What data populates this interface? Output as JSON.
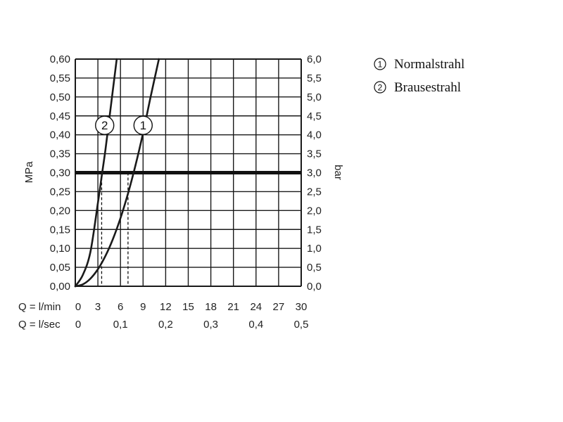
{
  "chart_data": {
    "type": "line",
    "x_label_lmin": "Q = l/min",
    "x_label_lsec": "Q = l/sec",
    "x_ticks_lmin": [
      "0",
      "3",
      "6",
      "9",
      "12",
      "15",
      "18",
      "21",
      "24",
      "27",
      "30"
    ],
    "x_ticks_lsec": [
      "0",
      "0,1",
      "0,2",
      "0,3",
      "0,4",
      "0,5"
    ],
    "x_ticks_lsec_values": [
      0,
      6,
      12,
      18,
      24,
      30
    ],
    "ylabel_left": "MPa",
    "ylabel_right": "bar",
    "y_ticks_left": [
      "0,00",
      "0,05",
      "0,10",
      "0,15",
      "0,20",
      "0,25",
      "0,30",
      "0,35",
      "0,40",
      "0,45",
      "0,50",
      "0,55",
      "0,60"
    ],
    "y_ticks_right": [
      "0,0",
      "0,5",
      "1,0",
      "1,5",
      "2,0",
      "2,5",
      "3,0",
      "3,5",
      "4,0",
      "4,5",
      "5,0",
      "5,5",
      "6,0"
    ],
    "xlim": [
      0,
      30
    ],
    "ylim": [
      0,
      0.6
    ],
    "grid": true,
    "reference_line": {
      "y": 0.3
    },
    "series": [
      {
        "marker": "1",
        "name": "Normalstrahl",
        "x": [
          0,
          1,
          2,
          3,
          4,
          5,
          6,
          7,
          8,
          9,
          10,
          11.1
        ],
        "y": [
          0,
          0.005,
          0.02,
          0.045,
          0.08,
          0.125,
          0.18,
          0.245,
          0.32,
          0.405,
          0.5,
          0.6
        ],
        "label_at": {
          "x": 9,
          "y": 0.425
        },
        "drop_line_x": 7
      },
      {
        "marker": "2",
        "name": "Brausestrahl",
        "x": [
          0,
          1,
          2,
          3,
          3.5,
          4,
          4.5,
          5,
          5.5
        ],
        "y": [
          0,
          0.03,
          0.09,
          0.22,
          0.29,
          0.36,
          0.44,
          0.52,
          0.6
        ],
        "label_at": {
          "x": 3.9,
          "y": 0.425
        },
        "drop_line_x": 3.5
      }
    ]
  }
}
